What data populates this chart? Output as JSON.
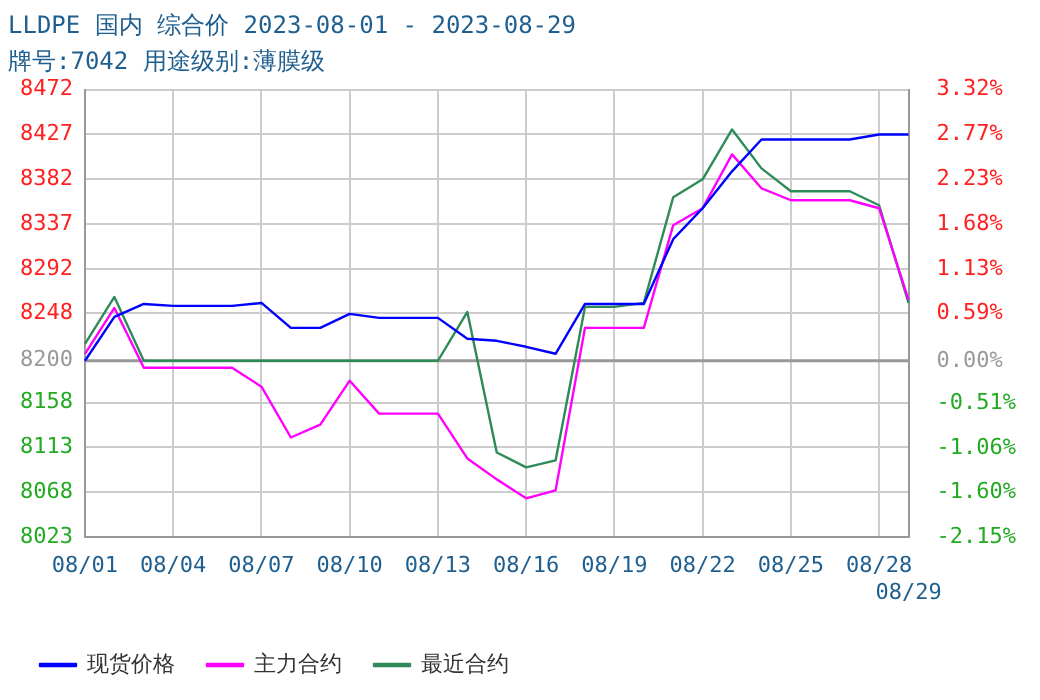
{
  "chart_data": {
    "type": "line",
    "title": "LLDPE 国内 综合价 2023-08-01 - 2023-08-29",
    "subtitle": "牌号:7042 用途级别:薄膜级",
    "categories": [
      "08/01",
      null,
      null,
      "08/04",
      null,
      null,
      "08/07",
      null,
      null,
      "08/10",
      null,
      null,
      "08/13",
      null,
      null,
      "08/16",
      null,
      null,
      "08/19",
      null,
      null,
      "08/22",
      null,
      null,
      "08/25",
      null,
      null,
      "08/28",
      "08/29"
    ],
    "series": [
      {
        "name": "现货价格",
        "color": "#0000ff",
        "values": [
          8200,
          8244,
          8257,
          8255,
          8255,
          8255,
          8258,
          8233,
          8233,
          8247,
          8243,
          8243,
          8243,
          8222,
          8220,
          8214,
          8207,
          8257,
          8257,
          8257,
          8322,
          8353,
          8390,
          8422,
          8422,
          8422,
          8422,
          8427,
          8427
        ]
      },
      {
        "name": "主力合约",
        "color": "#ff00ff",
        "values": [
          8207,
          8253,
          8193,
          8193,
          8193,
          8193,
          8174,
          8123,
          8136,
          8180,
          8147,
          8147,
          8147,
          8102,
          8081,
          8062,
          8070,
          8233,
          8233,
          8233,
          8336,
          8353,
          8407,
          8373,
          8361,
          8361,
          8361,
          8353,
          8261
        ]
      },
      {
        "name": "最近合约",
        "color": "#2e8b57",
        "values": [
          8217,
          8264,
          8200,
          8200,
          8200,
          8200,
          8200,
          8200,
          8200,
          8200,
          8200,
          8200,
          8200,
          8249,
          8108,
          8093,
          8100,
          8254,
          8254,
          8258,
          8364,
          8382,
          8432,
          8393,
          8370,
          8370,
          8370,
          8356,
          8258
        ]
      }
    ],
    "ylim": [
      8023,
      8472
    ],
    "yticks": [
      8023,
      8068,
      8113,
      8158,
      8200,
      8248,
      8292,
      8337,
      8382,
      8427,
      8472
    ],
    "y2lim": [
      -2.15,
      3.32
    ],
    "y2ticks": [
      {
        "value": -2.15,
        "label": "-2.15%"
      },
      {
        "value": -1.6,
        "label": "-1.60%"
      },
      {
        "value": -1.06,
        "label": "-1.06%"
      },
      {
        "value": -0.51,
        "label": "-0.51%"
      },
      {
        "value": 0,
        "label": "0.00%"
      },
      {
        "value": 0.59,
        "label": "0.59%"
      },
      {
        "value": 1.13,
        "label": "1.13%"
      },
      {
        "value": 1.68,
        "label": "1.68%"
      },
      {
        "value": 2.23,
        "label": "2.23%"
      },
      {
        "value": 2.77,
        "label": "2.77%"
      },
      {
        "value": 3.32,
        "label": "3.32%"
      }
    ],
    "ref_lines": [
      {
        "axis": "y",
        "value": 8200,
        "color": "#999999"
      }
    ],
    "grid": true,
    "legend": "bottom left",
    "marker": "none",
    "line_style": "solid"
  }
}
